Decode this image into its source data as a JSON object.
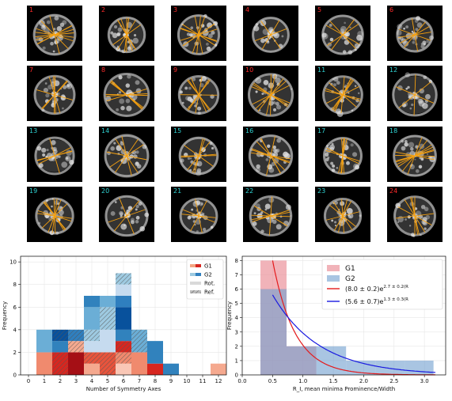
{
  "remnants": [
    {
      "label": "1",
      "group": "G1"
    },
    {
      "label": "2",
      "group": "G1"
    },
    {
      "label": "3",
      "group": "G1"
    },
    {
      "label": "4",
      "group": "G1"
    },
    {
      "label": "5",
      "group": "G1"
    },
    {
      "label": "6",
      "group": "G1"
    },
    {
      "label": "7",
      "group": "G1"
    },
    {
      "label": "8",
      "group": "G1"
    },
    {
      "label": "9",
      "group": "G1"
    },
    {
      "label": "10",
      "group": "G1"
    },
    {
      "label": "11",
      "group": "G2"
    },
    {
      "label": "12",
      "group": "G2"
    },
    {
      "label": "13",
      "group": "G2"
    },
    {
      "label": "14",
      "group": "G2"
    },
    {
      "label": "15",
      "group": "G2"
    },
    {
      "label": "16",
      "group": "G2"
    },
    {
      "label": "17",
      "group": "G2"
    },
    {
      "label": "18",
      "group": "G2"
    },
    {
      "label": "19",
      "group": "G2"
    },
    {
      "label": "20",
      "group": "G2"
    },
    {
      "label": "21",
      "group": "G2"
    },
    {
      "label": "22",
      "group": "G2"
    },
    {
      "label": "23",
      "group": "G2"
    },
    {
      "label": "24",
      "group": "G1"
    }
  ],
  "colors": {
    "G1": "#e6392b",
    "G2": "#2f7fbf",
    "axis_line": "#f5a00f",
    "label_G1": "#ff2a2a",
    "label_G2": "#2fd3d3",
    "fit1": "#e41a1c",
    "fit2": "#1a1ae0"
  },
  "chart_data": [
    {
      "type": "bar",
      "subtype": "stacked-histogram",
      "xlabel": "Number of Symmetry Axes",
      "ylabel": "Frequency",
      "x": [
        0,
        1,
        2,
        3,
        4,
        5,
        6,
        7,
        8,
        9,
        10,
        11,
        12
      ],
      "xticks": [
        "0",
        "1",
        "2",
        "3",
        "4",
        "5",
        "6",
        "7",
        "8",
        "9",
        "10",
        "11",
        "12"
      ],
      "ylim": [
        0,
        10.5
      ],
      "yticks": [
        "0",
        "2",
        "4",
        "6",
        "8",
        "10"
      ],
      "grid": true,
      "legend_position": "top-right",
      "legend": [
        {
          "label": "G1",
          "swatch": "g1"
        },
        {
          "label": "G2",
          "swatch": "g2"
        },
        {
          "label": "Rot.",
          "swatch": "rot"
        },
        {
          "label": "Ref.",
          "swatch": "ref"
        }
      ],
      "stacks": [
        {
          "x": 0,
          "cells": [
            {
              "g": "G1",
              "h": 0
            }
          ]
        },
        {
          "x": 1,
          "cells": [
            {
              "g": "G1",
              "h": 2
            },
            {
              "g": "G2",
              "h": 2
            }
          ]
        },
        {
          "x": 2,
          "cells": [
            {
              "g": "G1",
              "h": 2,
              "ref": true
            },
            {
              "g": "G2",
              "h": 1
            },
            {
              "g": "G2",
              "h": 1,
              "ref": true
            }
          ]
        },
        {
          "x": 3,
          "cells": [
            {
              "g": "G1",
              "h": 2
            },
            {
              "g": "G1",
              "h": 1,
              "ref": true
            },
            {
              "g": "G2",
              "h": 1,
              "ref": true
            }
          ]
        },
        {
          "x": 4,
          "cells": [
            {
              "g": "G1",
              "h": 1
            },
            {
              "g": "G1",
              "h": 1,
              "ref": true
            },
            {
              "g": "G2",
              "h": 1
            },
            {
              "g": "G2",
              "h": 1,
              "ref": true
            },
            {
              "g": "G2",
              "h": 2
            },
            {
              "g": "G2",
              "h": 1
            }
          ]
        },
        {
          "x": 5,
          "cells": [
            {
              "g": "G1",
              "h": 2,
              "ref": true
            },
            {
              "g": "G2",
              "h": 2
            },
            {
              "g": "G2",
              "h": 2,
              "ref": true
            },
            {
              "g": "G2",
              "h": 1
            }
          ]
        },
        {
          "x": 6,
          "cells": [
            {
              "g": "G1",
              "h": 1
            },
            {
              "g": "G1",
              "h": 1,
              "ref": true
            },
            {
              "g": "G1",
              "h": 1,
              "ref": true
            },
            {
              "g": "G2",
              "h": 1
            },
            {
              "g": "G2",
              "h": 2
            },
            {
              "g": "G2",
              "h": 1
            },
            {
              "g": "G2",
              "h": 1
            },
            {
              "g": "G2",
              "h": 1,
              "ref": true
            }
          ]
        },
        {
          "x": 7,
          "cells": [
            {
              "g": "G1",
              "h": 2
            },
            {
              "g": "G2",
              "h": 2,
              "ref": true
            }
          ]
        },
        {
          "x": 8,
          "cells": [
            {
              "g": "G1",
              "h": 1
            },
            {
              "g": "G2",
              "h": 2
            }
          ]
        },
        {
          "x": 9,
          "cells": [
            {
              "g": "G2",
              "h": 1
            }
          ]
        },
        {
          "x": 12,
          "cells": [
            {
              "g": "G1",
              "h": 1
            }
          ]
        }
      ]
    },
    {
      "type": "bar",
      "subtype": "histogram-with-fits",
      "xlabel": "R_I, mean minima Prominence/Width",
      "ylabel": "Frequency",
      "xlim": [
        0.0,
        3.35
      ],
      "ylim": [
        0,
        8.3
      ],
      "xticks": [
        "0.0",
        "0.5",
        "1.0",
        "1.5",
        "2.0",
        "2.5",
        "3.0"
      ],
      "yticks": [
        "0",
        "1",
        "2",
        "3",
        "4",
        "5",
        "6",
        "7",
        "8"
      ],
      "grid": true,
      "legend_position": "top-right",
      "bin_edges": [
        0.3,
        0.73,
        1.22,
        1.71,
        2.2,
        2.68,
        3.15
      ],
      "series": [
        {
          "name": "G1",
          "values": [
            8,
            2,
            0,
            0,
            0,
            0
          ]
        },
        {
          "name": "G2",
          "values": [
            6,
            2,
            2,
            1,
            1,
            1
          ]
        }
      ],
      "fits": [
        {
          "name": "(8.0 ± 0.2)e^{2.7 ± 0.2(R_I − R_{I,0})}",
          "label_base": "(8.0 ± 0.2)e",
          "label_exp": "2.7 ± 0.2(R",
          "color": "fit1",
          "A": 8.0,
          "k": 2.7,
          "x0": 0.5
        },
        {
          "name": "(5.6 ± 0.7)e^{1.3 ± 0.3(R_I − R_{I,0})}",
          "label_base": "(5.6 ± 0.7)e",
          "label_exp": "1.3 ± 0.3(R",
          "color": "fit2",
          "A": 5.6,
          "k": 1.3,
          "x0": 0.5
        }
      ]
    }
  ]
}
